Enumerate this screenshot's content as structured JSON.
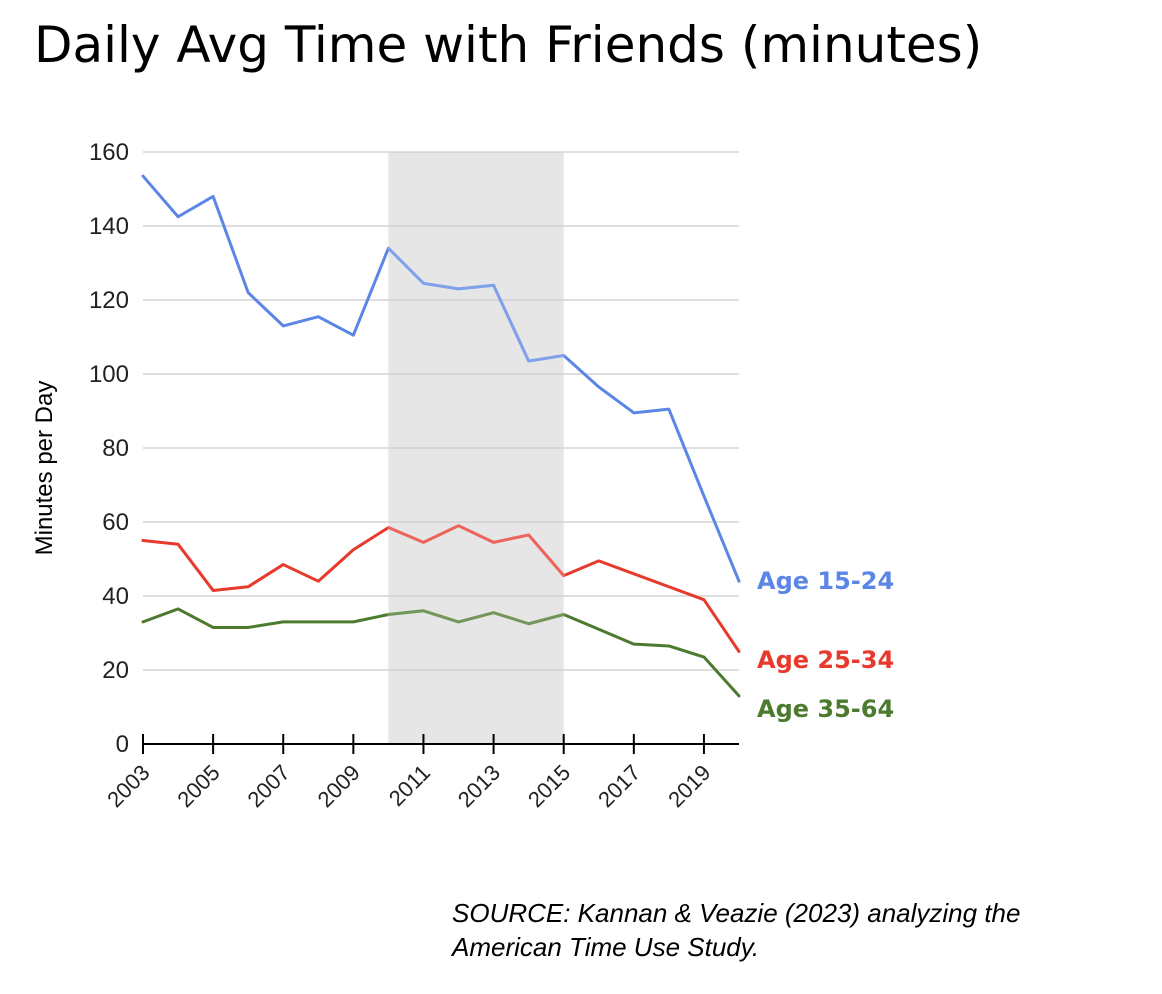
{
  "source_lines": [
    "SOURCE: Kannan & Veazie (2023) analyzing the",
    "American Time Use Study."
  ],
  "chart_data": {
    "type": "line",
    "title": "Daily Avg Time with Friends (minutes)",
    "xlabel": "",
    "ylabel": "Minutes per Day",
    "x": [
      2003,
      2004,
      2005,
      2006,
      2007,
      2008,
      2009,
      2010,
      2011,
      2012,
      2013,
      2014,
      2015,
      2016,
      2017,
      2018,
      2019,
      2020
    ],
    "xticks": [
      2003,
      2005,
      2007,
      2009,
      2011,
      2013,
      2015,
      2017,
      2019
    ],
    "xlim": [
      2003,
      2020
    ],
    "ylim": [
      0,
      160
    ],
    "yticks": [
      0,
      20,
      40,
      60,
      80,
      100,
      120,
      140,
      160
    ],
    "grid": true,
    "legend": "labels at line ends (right)",
    "highlight_region": {
      "from": 2010,
      "to": 2015,
      "color": "#e6e6e6"
    },
    "series": [
      {
        "name": "Age 15-24",
        "color": "#5b86e5",
        "values": [
          153.5,
          142.5,
          148,
          122,
          113,
          115.5,
          110.5,
          134,
          124.5,
          123,
          124,
          103.5,
          105,
          96.5,
          89.5,
          90.5,
          67,
          44
        ]
      },
      {
        "name": "Age 25-34",
        "color": "#e8392d",
        "values": [
          55,
          54,
          41.5,
          42.5,
          48.5,
          44,
          52.5,
          58.5,
          54.5,
          59,
          54.5,
          56.5,
          45.5,
          49.5,
          46,
          42.5,
          39,
          25
        ]
      },
      {
        "name": "Age 35-64",
        "color": "#4c7a2e",
        "values": [
          33,
          36.5,
          31.5,
          31.5,
          33,
          33,
          33,
          35,
          36,
          33,
          35.5,
          32.5,
          35,
          31,
          27,
          26.5,
          23.5,
          13
        ]
      }
    ]
  }
}
